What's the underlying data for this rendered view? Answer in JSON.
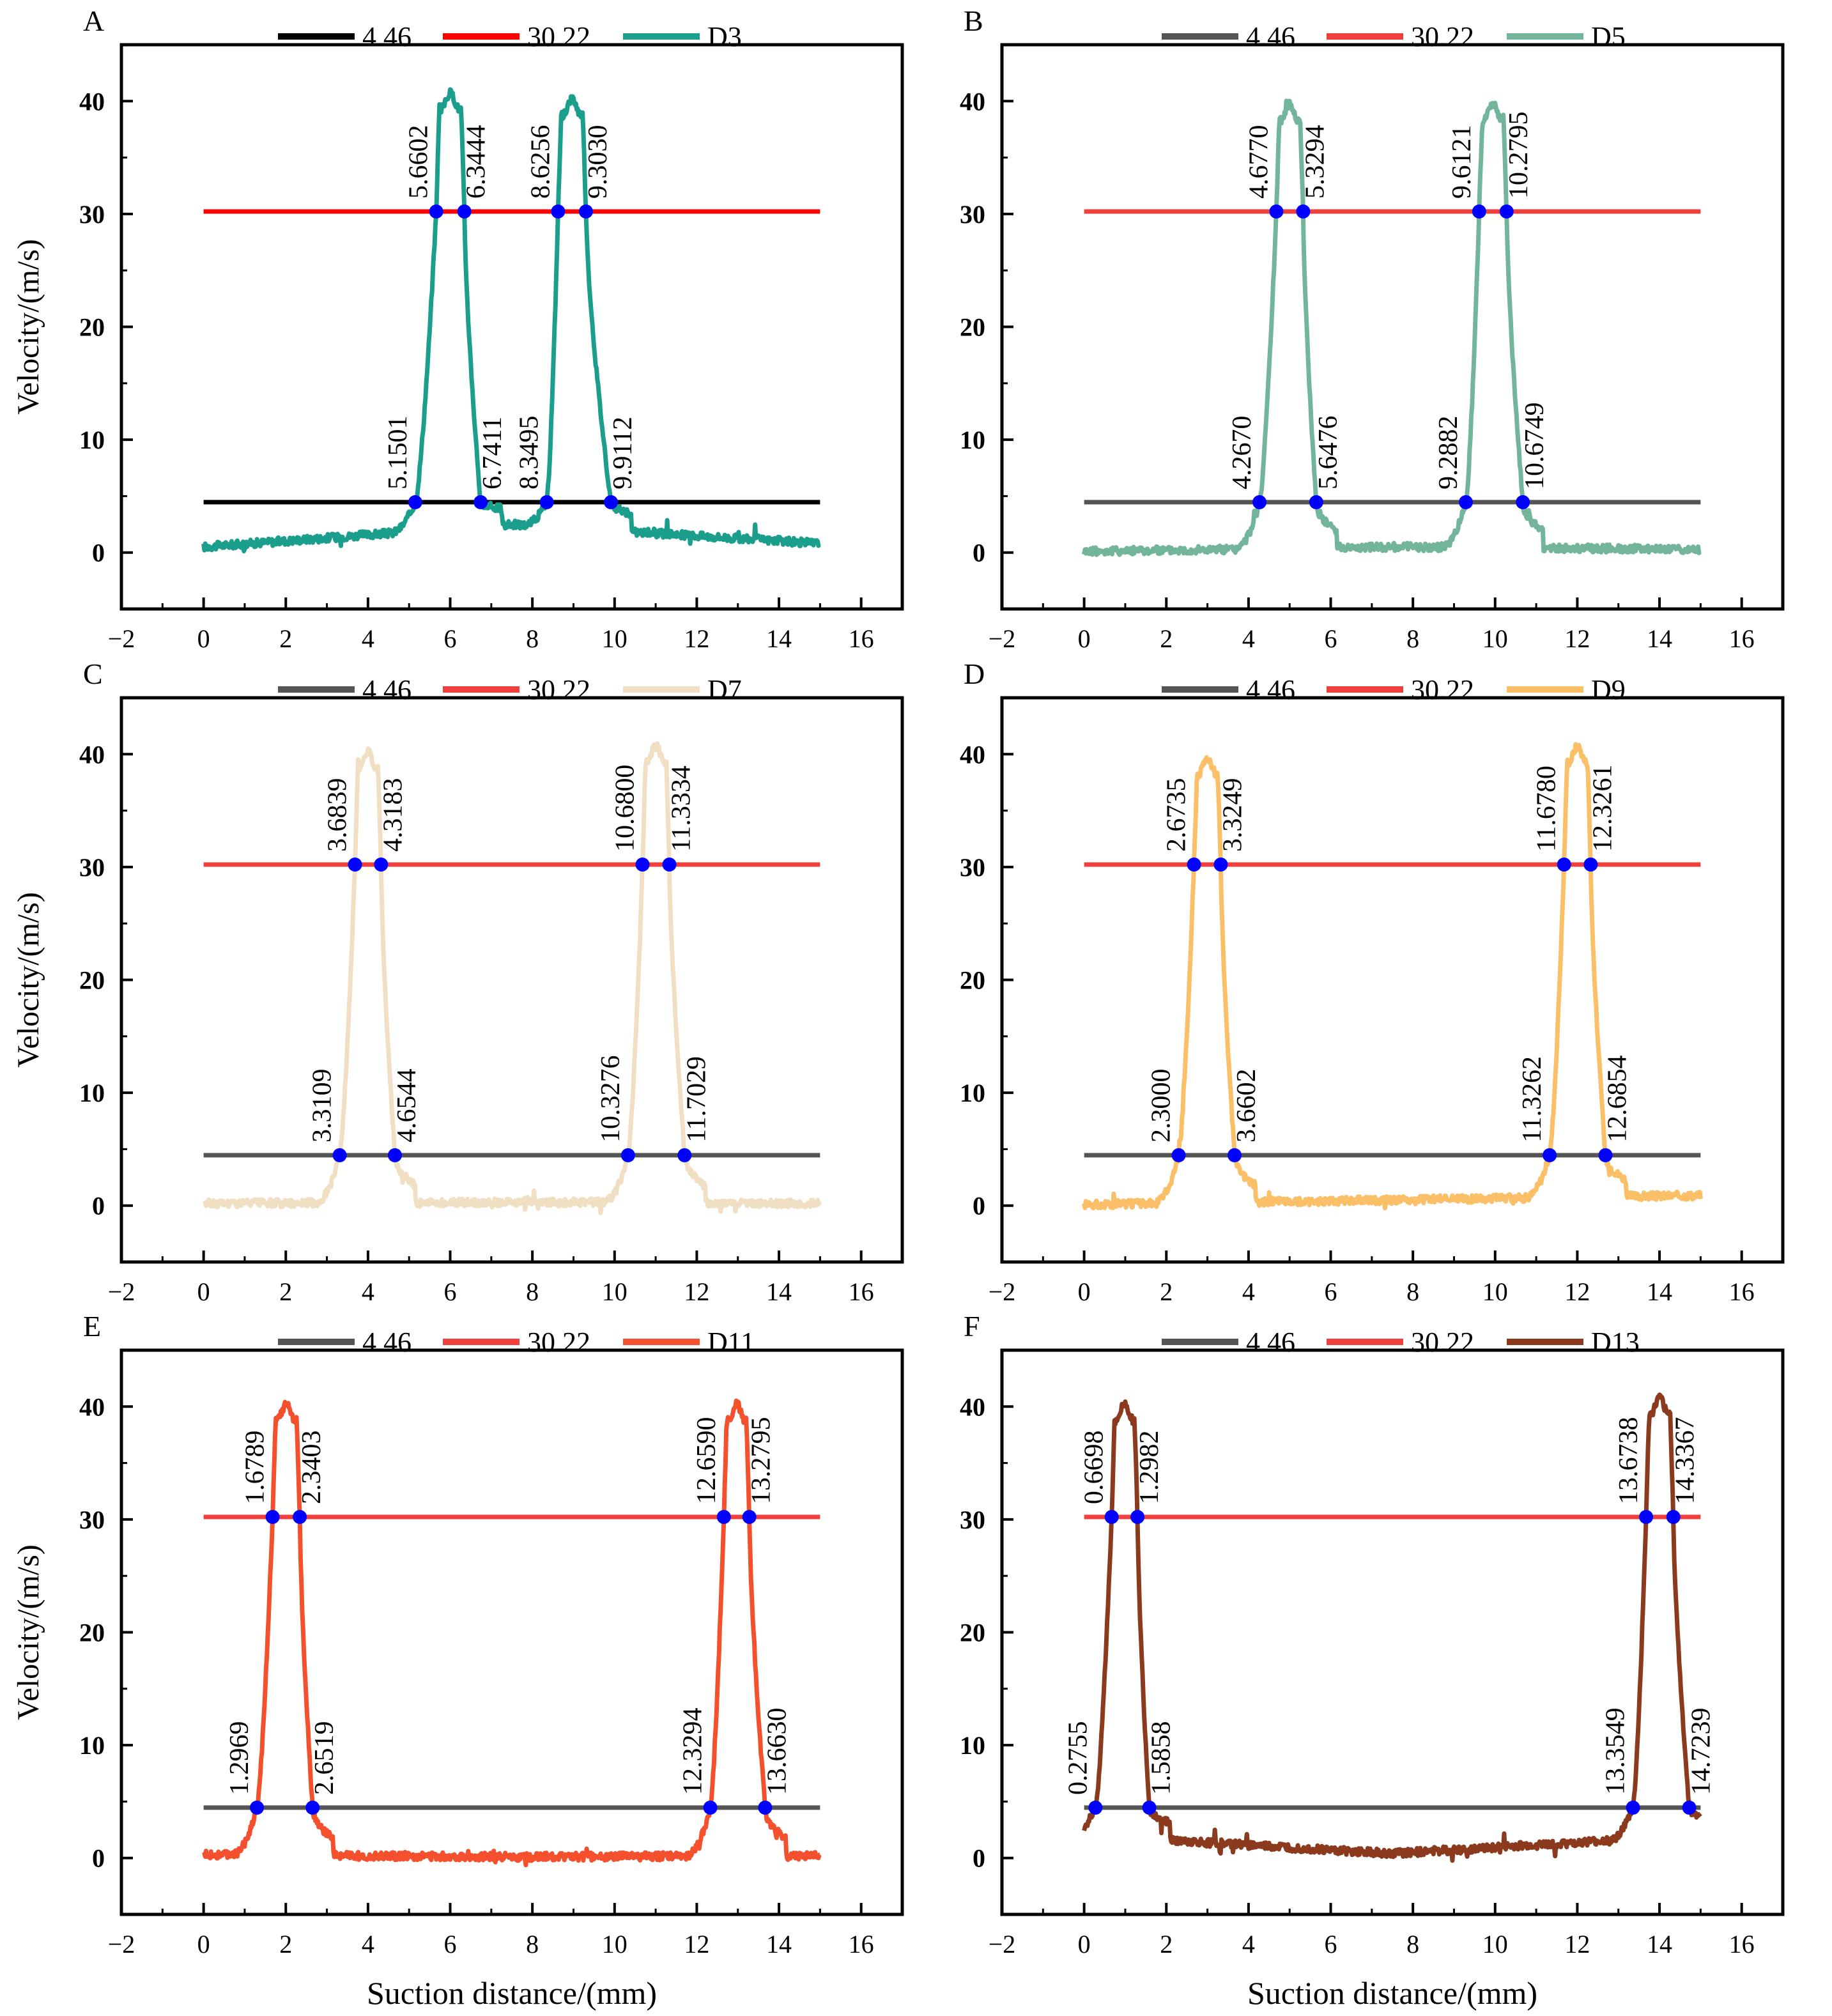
{
  "figure": {
    "xlabel": "Suction distance/(mm)",
    "ylabel": "Velocity/(m/s)",
    "point_color": "#0000ff"
  },
  "chart_data": [
    {
      "type": "line",
      "panel_label": "A",
      "xlim": [
        -2,
        17
      ],
      "ylim": [
        -5,
        45
      ],
      "xticks": [
        "-2",
        "0",
        "2",
        "4",
        "6",
        "8",
        "10",
        "12",
        "14",
        "16"
      ],
      "yticks": [
        "0",
        "10",
        "20",
        "30",
        "40"
      ],
      "xlabel": "",
      "ylabel": "Velocity/(m/s)",
      "legend": [
        {
          "label": "4.46",
          "color": "#000000"
        },
        {
          "label": "30.22",
          "color": "#ff0000"
        },
        {
          "label": "D3",
          "color": "#1b9e8c"
        }
      ],
      "thresholds": [
        {
          "y": 4.46,
          "x": [
            0,
            15
          ],
          "color": "#000000"
        },
        {
          "y": 30.22,
          "x": [
            0,
            15
          ],
          "color": "#ff0000"
        }
      ],
      "pulses": [
        {
          "lo_start": 5.1501,
          "hi_start": 5.6602,
          "hi_end": 6.3444,
          "lo_end": 6.7411,
          "peak": 40
        },
        {
          "lo_start": 8.3495,
          "hi_start": 8.6256,
          "hi_end": 9.303,
          "lo_end": 9.9112,
          "peak": 39.5
        }
      ],
      "baseline": {
        "start": 0.5,
        "end": 0.8,
        "mid": 2.5,
        "sag": 1.2
      },
      "series": {
        "name": "D3",
        "color": "#1b9e8c"
      },
      "crossings_high": [
        {
          "x": 5.6602,
          "label": "5.6602"
        },
        {
          "x": 6.3444,
          "label": "6.3444"
        },
        {
          "x": 8.6256,
          "label": "8.6256"
        },
        {
          "x": 9.303,
          "label": "9.3030"
        }
      ],
      "crossings_low": [
        {
          "x": 5.1501,
          "label": "5.1501"
        },
        {
          "x": 6.7411,
          "label": "6.7411"
        },
        {
          "x": 8.3495,
          "label": "8.3495"
        },
        {
          "x": 9.9112,
          "label": "9.9112"
        }
      ]
    },
    {
      "type": "line",
      "panel_label": "B",
      "xlim": [
        -2,
        17
      ],
      "ylim": [
        -5,
        45
      ],
      "xticks": [
        "-2",
        "0",
        "2",
        "4",
        "6",
        "8",
        "10",
        "12",
        "14",
        "16"
      ],
      "yticks": [
        "0",
        "10",
        "20",
        "30",
        "40"
      ],
      "xlabel": "",
      "ylabel": "",
      "legend": [
        {
          "label": "4.46",
          "color": "#555555"
        },
        {
          "label": "30.22",
          "color": "#f0403d"
        },
        {
          "label": "D5",
          "color": "#72b59a"
        }
      ],
      "thresholds": [
        {
          "y": 4.46,
          "x": [
            0,
            15
          ],
          "color": "#555555"
        },
        {
          "y": 30.22,
          "x": [
            0,
            15
          ],
          "color": "#f0403d"
        }
      ],
      "pulses": [
        {
          "lo_start": 4.267,
          "hi_start": 4.677,
          "hi_end": 5.3294,
          "lo_end": 5.6476,
          "peak": 39
        },
        {
          "lo_start": 9.2882,
          "hi_start": 9.6121,
          "hi_end": 10.2795,
          "lo_end": 10.6749,
          "peak": 39
        }
      ],
      "baseline": {
        "start": 0.1,
        "end": 0.3,
        "mid": 0.5,
        "sag": 0
      },
      "series": {
        "name": "D5",
        "color": "#72b59a"
      },
      "crossings_high": [
        {
          "x": 4.677,
          "label": "4.6770"
        },
        {
          "x": 5.3294,
          "label": "5.3294"
        },
        {
          "x": 9.6121,
          "label": "9.6121"
        },
        {
          "x": 10.2795,
          "label": "10.2795"
        }
      ],
      "crossings_low": [
        {
          "x": 4.267,
          "label": "4.2670"
        },
        {
          "x": 5.6476,
          "label": "5.6476"
        },
        {
          "x": 9.2882,
          "label": "9.2882"
        },
        {
          "x": 10.6749,
          "label": "10.6749"
        }
      ]
    },
    {
      "type": "line",
      "panel_label": "C",
      "xlim": [
        -2,
        17
      ],
      "ylim": [
        -5,
        45
      ],
      "xticks": [
        "-2",
        "0",
        "2",
        "4",
        "6",
        "8",
        "10",
        "12",
        "14",
        "16"
      ],
      "yticks": [
        "0",
        "10",
        "20",
        "30",
        "40"
      ],
      "xlabel": "",
      "ylabel": "Velocity/(m/s)",
      "legend": [
        {
          "label": "4.46",
          "color": "#555555"
        },
        {
          "label": "30.22",
          "color": "#f0403d"
        },
        {
          "label": "D7",
          "color": "#f1dfc4"
        }
      ],
      "thresholds": [
        {
          "y": 4.46,
          "x": [
            0,
            15
          ],
          "color": "#555555"
        },
        {
          "y": 30.22,
          "x": [
            0,
            15
          ],
          "color": "#f0403d"
        }
      ],
      "pulses": [
        {
          "lo_start": 3.3109,
          "hi_start": 3.6839,
          "hi_end": 4.3183,
          "lo_end": 4.6544,
          "peak": 39.5
        },
        {
          "lo_start": 10.3276,
          "hi_start": 10.68,
          "hi_end": 11.3334,
          "lo_end": 11.7029,
          "peak": 40
        }
      ],
      "baseline": {
        "start": 0.2,
        "end": 0.2,
        "mid": 0.3,
        "sag": 0
      },
      "series": {
        "name": "D7",
        "color": "#f1dfc4"
      },
      "crossings_high": [
        {
          "x": 3.6839,
          "label": "3.6839"
        },
        {
          "x": 4.3183,
          "label": "4.3183"
        },
        {
          "x": 10.68,
          "label": "10.6800"
        },
        {
          "x": 11.3334,
          "label": "11.3334"
        }
      ],
      "crossings_low": [
        {
          "x": 3.3109,
          "label": "3.3109"
        },
        {
          "x": 4.6544,
          "label": "4.6544"
        },
        {
          "x": 10.3276,
          "label": "10.3276"
        },
        {
          "x": 11.7029,
          "label": "11.7029"
        }
      ]
    },
    {
      "type": "line",
      "panel_label": "D",
      "xlim": [
        -2,
        17
      ],
      "ylim": [
        -5,
        45
      ],
      "xticks": [
        "-2",
        "0",
        "2",
        "4",
        "6",
        "8",
        "10",
        "12",
        "14",
        "16"
      ],
      "yticks": [
        "0",
        "10",
        "20",
        "30",
        "40"
      ],
      "xlabel": "",
      "ylabel": "",
      "legend": [
        {
          "label": "4.46",
          "color": "#555555"
        },
        {
          "label": "30.22",
          "color": "#f0403d"
        },
        {
          "label": "D9",
          "color": "#fbbf67"
        }
      ],
      "thresholds": [
        {
          "y": 4.46,
          "x": [
            0,
            15
          ],
          "color": "#555555"
        },
        {
          "y": 30.22,
          "x": [
            0,
            15
          ],
          "color": "#f0403d"
        }
      ],
      "pulses": [
        {
          "lo_start": 2.3,
          "hi_start": 2.6735,
          "hi_end": 3.3249,
          "lo_end": 3.6602,
          "peak": 39
        },
        {
          "lo_start": 11.3262,
          "hi_start": 11.678,
          "hi_end": 12.3261,
          "lo_end": 12.6854,
          "peak": 40
        }
      ],
      "baseline": {
        "start": 0.1,
        "end": 0.9,
        "mid": 0.5,
        "sag": 0
      },
      "series": {
        "name": "D9",
        "color": "#fbbf67"
      },
      "crossings_high": [
        {
          "x": 2.6735,
          "label": "2.6735"
        },
        {
          "x": 3.3249,
          "label": "3.3249"
        },
        {
          "x": 11.678,
          "label": "11.6780"
        },
        {
          "x": 12.3261,
          "label": "12.3261"
        }
      ],
      "crossings_low": [
        {
          "x": 2.3,
          "label": "2.3000"
        },
        {
          "x": 3.6602,
          "label": "3.6602"
        },
        {
          "x": 11.3262,
          "label": "11.3262"
        },
        {
          "x": 12.6854,
          "label": "12.6854"
        }
      ]
    },
    {
      "type": "line",
      "panel_label": "E",
      "xlim": [
        -2,
        17
      ],
      "ylim": [
        -5,
        45
      ],
      "xticks": [
        "-2",
        "0",
        "2",
        "4",
        "6",
        "8",
        "10",
        "12",
        "14",
        "16"
      ],
      "yticks": [
        "0",
        "10",
        "20",
        "30",
        "40"
      ],
      "xlabel": "Suction distance/(mm)",
      "ylabel": "Velocity/(m/s)",
      "legend": [
        {
          "label": "4.46",
          "color": "#555555"
        },
        {
          "label": "30.22",
          "color": "#f0403d"
        },
        {
          "label": "D11",
          "color": "#f4502d"
        }
      ],
      "thresholds": [
        {
          "y": 4.46,
          "x": [
            0,
            15
          ],
          "color": "#555555"
        },
        {
          "y": 30.22,
          "x": [
            0,
            15
          ],
          "color": "#f0403d"
        }
      ],
      "pulses": [
        {
          "lo_start": 1.2969,
          "hi_start": 1.6789,
          "hi_end": 2.3403,
          "lo_end": 2.6519,
          "peak": 39.5
        },
        {
          "lo_start": 12.3294,
          "hi_start": 12.659,
          "hi_end": 13.2795,
          "lo_end": 13.663,
          "peak": 39.5
        }
      ],
      "baseline": {
        "start": 0.3,
        "end": 0.2,
        "mid": 0.1,
        "sag": 0
      },
      "series": {
        "name": "D11",
        "color": "#f4502d"
      },
      "crossings_high": [
        {
          "x": 1.6789,
          "label": "1.6789"
        },
        {
          "x": 2.3403,
          "label": "2.3403"
        },
        {
          "x": 12.659,
          "label": "12.6590"
        },
        {
          "x": 13.2795,
          "label": "13.2795"
        }
      ],
      "crossings_low": [
        {
          "x": 1.2969,
          "label": "1.2969"
        },
        {
          "x": 2.6519,
          "label": "2.6519"
        },
        {
          "x": 12.3294,
          "label": "12.3294"
        },
        {
          "x": 13.663,
          "label": "13.6630"
        }
      ]
    },
    {
      "type": "line",
      "panel_label": "F",
      "xlim": [
        -2,
        17
      ],
      "ylim": [
        -5,
        45
      ],
      "xticks": [
        "-2",
        "0",
        "2",
        "4",
        "6",
        "8",
        "10",
        "12",
        "14",
        "16"
      ],
      "yticks": [
        "0",
        "10",
        "20",
        "30",
        "40"
      ],
      "xlabel": "Suction distance/(mm)",
      "ylabel": "",
      "legend": [
        {
          "label": "4.46",
          "color": "#555555"
        },
        {
          "label": "30.22",
          "color": "#f0403d"
        },
        {
          "label": "D13",
          "color": "#8b3a1e"
        }
      ],
      "thresholds": [
        {
          "y": 4.46,
          "x": [
            0,
            15
          ],
          "color": "#555555"
        },
        {
          "y": 30.22,
          "x": [
            0,
            15
          ],
          "color": "#f0403d"
        }
      ],
      "pulses": [
        {
          "lo_start": 0.2755,
          "hi_start": 0.6698,
          "hi_end": 1.2982,
          "lo_end": 1.5858,
          "peak": 39.5
        },
        {
          "lo_start": 13.3549,
          "hi_start": 13.6738,
          "hi_end": 14.3367,
          "lo_end": 14.7239,
          "peak": 40
        }
      ],
      "baseline": {
        "start": 2.0,
        "end": 2.0,
        "mid": 0.4,
        "sag": 0
      },
      "series": {
        "name": "D13",
        "color": "#8b3a1e"
      },
      "crossings_high": [
        {
          "x": 0.6698,
          "label": "0.6698"
        },
        {
          "x": 1.2982,
          "label": "1.2982"
        },
        {
          "x": 13.6738,
          "label": "13.6738"
        },
        {
          "x": 14.3367,
          "label": "14.3367"
        }
      ],
      "crossings_low": [
        {
          "x": 0.2755,
          "label": "0.2755"
        },
        {
          "x": 1.5858,
          "label": "1.5858"
        },
        {
          "x": 13.3549,
          "label": "13.3549"
        },
        {
          "x": 14.7239,
          "label": "14.7239"
        }
      ]
    }
  ]
}
